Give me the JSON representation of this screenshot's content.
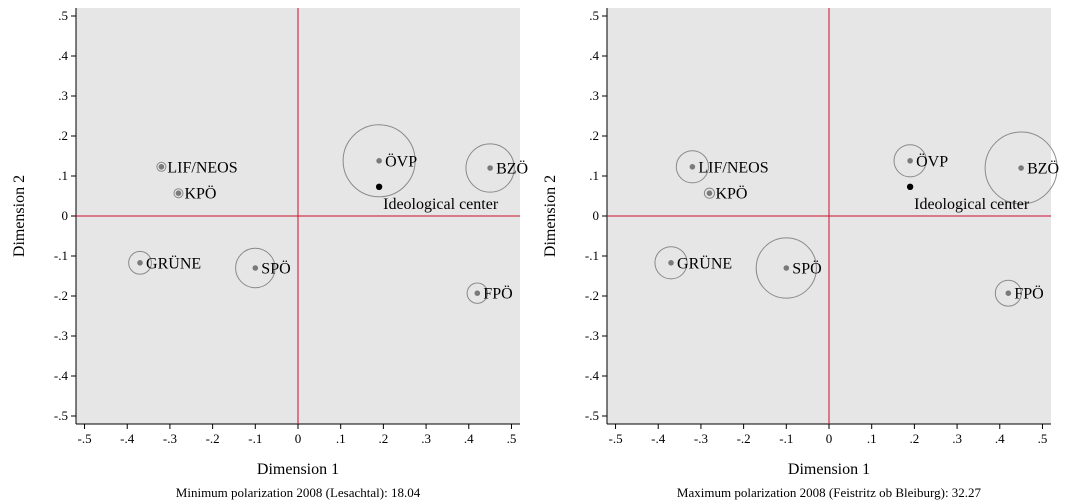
{
  "chart_data": [
    {
      "type": "scatter",
      "xlabel": "Dimension 1",
      "ylabel": "Dimension 2",
      "caption": "Minimum polarization 2008 (Lesachtal): 18.04",
      "xlim": [
        -0.5,
        0.5
      ],
      "ylim": [
        -0.5,
        0.5
      ],
      "xticks": [
        -0.5,
        -0.4,
        -0.3,
        -0.2,
        -0.1,
        0,
        0.1,
        0.2,
        0.3,
        0.4,
        0.5
      ],
      "xtick_labels": [
        "-.5",
        "-.4",
        "-.3",
        "-.2",
        "-.1",
        "0",
        ".1",
        ".2",
        ".3",
        ".4",
        ".5"
      ],
      "yticks": [
        0.5,
        0.4,
        0.3,
        0.2,
        0.1,
        0,
        -0.1,
        -0.2,
        -0.3,
        -0.4,
        -0.5
      ],
      "ytick_labels": [
        ".5",
        ".4",
        ".3",
        ".2",
        ".1",
        "0",
        "-.1",
        "-.2",
        "-.3",
        "-.4",
        "-.5"
      ],
      "grid": false,
      "reference_lines": {
        "x": 0,
        "y": 0,
        "color": "#c8102e"
      },
      "points": [
        {
          "label": "LIF/NEOS",
          "x": -0.32,
          "y": 0.123,
          "weight": 0.0
        },
        {
          "label": "KPÖ",
          "x": -0.28,
          "y": 0.057,
          "weight": 0.0
        },
        {
          "label": "ÖVP",
          "x": 0.19,
          "y": 0.138,
          "weight": 1.0
        },
        {
          "label": "BZÖ",
          "x": 0.45,
          "y": 0.12,
          "weight": 0.45
        },
        {
          "label": "GRÜNE",
          "x": -0.37,
          "y": -0.117,
          "weight": 0.1
        },
        {
          "label": "SPÖ",
          "x": -0.1,
          "y": -0.13,
          "weight": 0.3
        },
        {
          "label": "FPÖ",
          "x": 0.42,
          "y": -0.193,
          "weight": 0.08
        }
      ],
      "center": {
        "label": "Ideological center",
        "x": 0.19,
        "y": 0.073
      }
    },
    {
      "type": "scatter",
      "xlabel": "Dimension 1",
      "ylabel": "Dimension 2",
      "caption": "Maximum polarization 2008 (Feistritz ob Bleiburg): 32.27",
      "xlim": [
        -0.5,
        0.5
      ],
      "ylim": [
        -0.5,
        0.5
      ],
      "xticks": [
        -0.5,
        -0.4,
        -0.3,
        -0.2,
        -0.1,
        0,
        0.1,
        0.2,
        0.3,
        0.4,
        0.5
      ],
      "xtick_labels": [
        "-.5",
        "-.4",
        "-.3",
        "-.2",
        "-.1",
        "0",
        ".1",
        ".2",
        ".3",
        ".4",
        ".5"
      ],
      "yticks": [
        0.5,
        0.4,
        0.3,
        0.2,
        0.1,
        0,
        -0.1,
        -0.2,
        -0.3,
        -0.4,
        -0.5
      ],
      "ytick_labels": [
        ".5",
        ".4",
        ".3",
        ".2",
        ".1",
        "0",
        "-.1",
        "-.2",
        "-.3",
        "-.4",
        "-.5"
      ],
      "grid": false,
      "reference_lines": {
        "x": 0,
        "y": 0,
        "color": "#c8102e"
      },
      "points": [
        {
          "label": "LIF/NEOS",
          "x": -0.32,
          "y": 0.123,
          "weight": 0.2
        },
        {
          "label": "KPÖ",
          "x": -0.28,
          "y": 0.057,
          "weight": 0.02
        },
        {
          "label": "ÖVP",
          "x": 0.19,
          "y": 0.138,
          "weight": 0.2
        },
        {
          "label": "BZÖ",
          "x": 0.45,
          "y": 0.12,
          "weight": 1.0
        },
        {
          "label": "GRÜNE",
          "x": -0.37,
          "y": -0.117,
          "weight": 0.2
        },
        {
          "label": "SPÖ",
          "x": -0.1,
          "y": -0.13,
          "weight": 0.7
        },
        {
          "label": "FPÖ",
          "x": 0.42,
          "y": -0.193,
          "weight": 0.13
        }
      ],
      "center": {
        "label": "Ideological center",
        "x": 0.19,
        "y": 0.073
      }
    }
  ]
}
